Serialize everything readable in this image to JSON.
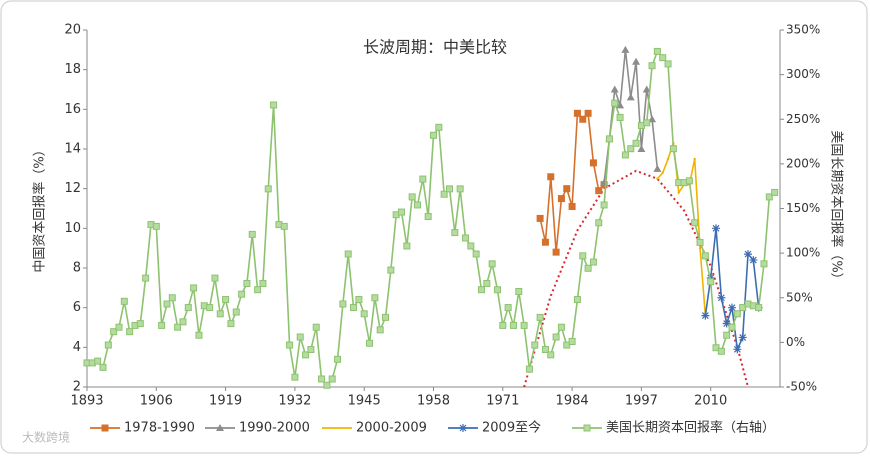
{
  "chart_data": {
    "type": "line",
    "title": "长波周期：中美比较",
    "ylabel": "中国资本回报率（%）",
    "y2label": "美国长期资本回报率（%）",
    "watermark": "大数跨境",
    "xlim": [
      1893,
      2023
    ],
    "xticks": [
      1893,
      1906,
      1919,
      1932,
      1945,
      1958,
      1971,
      1984,
      1997,
      2010
    ],
    "ylim": [
      2,
      20
    ],
    "yticks": [
      2,
      4,
      6,
      8,
      10,
      12,
      14,
      16,
      18,
      20
    ],
    "y2lim": [
      -50,
      350
    ],
    "y2ticks": [
      {
        "value": -50,
        "label": "-50%"
      },
      {
        "value": 0,
        "label": "0%"
      },
      {
        "value": 50,
        "label": "50%"
      },
      {
        "value": 100,
        "label": "100%"
      },
      {
        "value": 150,
        "label": "150%"
      },
      {
        "value": 200,
        "label": "200%"
      },
      {
        "value": 250,
        "label": "250%"
      },
      {
        "value": 300,
        "label": "300%"
      },
      {
        "value": 350,
        "label": "350%"
      }
    ],
    "series": [
      {
        "name": "1978-1990",
        "color": "#d4712b",
        "marker": "square",
        "x": [
          1978,
          1979,
          1980,
          1981,
          1982,
          1983,
          1984,
          1985,
          1986,
          1987,
          1988,
          1989,
          1990
        ],
        "values": [
          10.5,
          9.3,
          12.6,
          8.8,
          11.5,
          12.0,
          11.1,
          15.8,
          15.5,
          15.8,
          13.3,
          11.9,
          12.2
        ]
      },
      {
        "name": "1990-2000",
        "color": "#8c8c8c",
        "marker": "triangle",
        "x": [
          1990,
          1991,
          1992,
          1993,
          1994,
          1995,
          1996,
          1997,
          1998,
          1999,
          2000
        ],
        "values": [
          12.3,
          14.5,
          17.0,
          16.2,
          19.0,
          16.6,
          18.4,
          14.0,
          17.0,
          15.5,
          13.0
        ]
      },
      {
        "name": "2000-2009",
        "color": "#f0b400",
        "marker": "none",
        "x": [
          2000,
          2001,
          2002,
          2003,
          2004,
          2005,
          2006,
          2007,
          2008,
          2009
        ],
        "values": [
          12.5,
          12.8,
          13.5,
          14.3,
          11.8,
          12.2,
          12.2,
          13.5,
          9.0,
          5.6
        ]
      },
      {
        "name": "2009至今",
        "color": "#3d6cb3",
        "marker": "star",
        "x": [
          2009,
          2010,
          2011,
          2012,
          2013,
          2014,
          2015,
          2016,
          2017,
          2018,
          2019
        ],
        "values": [
          5.6,
          7.5,
          10.0,
          6.5,
          5.2,
          6.0,
          3.9,
          4.5,
          8.7,
          8.4,
          6.0
        ]
      },
      {
        "name": "美国长期资本回报率（右轴）",
        "color": "#8dc26f",
        "marker": "square",
        "axis": "y2",
        "x": [
          1893,
          1894,
          1895,
          1896,
          1897,
          1898,
          1899,
          1900,
          1901,
          1902,
          1903,
          1904,
          1905,
          1906,
          1907,
          1908,
          1909,
          1910,
          1911,
          1912,
          1913,
          1914,
          1915,
          1916,
          1917,
          1918,
          1919,
          1920,
          1921,
          1922,
          1923,
          1924,
          1925,
          1926,
          1927,
          1928,
          1929,
          1930,
          1931,
          1932,
          1933,
          1934,
          1935,
          1936,
          1937,
          1938,
          1939,
          1940,
          1941,
          1942,
          1943,
          1944,
          1945,
          1946,
          1947,
          1948,
          1949,
          1950,
          1951,
          1952,
          1953,
          1954,
          1955,
          1956,
          1957,
          1958,
          1959,
          1960,
          1961,
          1962,
          1963,
          1964,
          1965,
          1966,
          1967,
          1968,
          1969,
          1970,
          1971,
          1972,
          1973,
          1974,
          1975,
          1976,
          1977,
          1978,
          1979,
          1980,
          1981,
          1982,
          1983,
          1984,
          1985,
          1986,
          1987,
          1988,
          1989,
          1990,
          1991,
          1992,
          1993,
          1994,
          1995,
          1996,
          1997,
          1998,
          1999,
          2000,
          2001,
          2002,
          2003,
          2004,
          2005,
          2006,
          2007,
          2008,
          2009,
          2010,
          2011,
          2012,
          2013,
          2014,
          2015,
          2016,
          2017,
          2018,
          2019,
          2020,
          2021,
          2022
        ],
        "values": [
          -23,
          -23,
          -21,
          -28,
          -3,
          12,
          17,
          46,
          12,
          19,
          21,
          72,
          132,
          130,
          19,
          43,
          50,
          17,
          23,
          39,
          61,
          8,
          41,
          39,
          72,
          32,
          48,
          21,
          34,
          54,
          66,
          121,
          59,
          66,
          172,
          266,
          132,
          130,
          -3,
          -39,
          6,
          -14,
          -8,
          17,
          -41,
          -48,
          -41,
          -19,
          43,
          99,
          39,
          48,
          32,
          -1,
          50,
          14,
          28,
          81,
          143,
          146,
          108,
          163,
          154,
          183,
          141,
          232,
          241,
          166,
          172,
          123,
          172,
          117,
          108,
          99,
          59,
          66,
          88,
          59,
          19,
          39,
          19,
          57,
          19,
          -30,
          -3,
          28,
          -8,
          -14,
          6,
          17,
          -3,
          1,
          48,
          97,
          83,
          90,
          134,
          154,
          228,
          268,
          252,
          210,
          217,
          223,
          243,
          246,
          310,
          326,
          319,
          312,
          217,
          179,
          179,
          181,
          134,
          112,
          97,
          68,
          -6,
          -10,
          8,
          17,
          32,
          39,
          43,
          41,
          39,
          88,
          163,
          168
        ]
      }
    ],
    "trend": {
      "color": "#d9262b",
      "x": [
        1975,
        1980,
        1985,
        1990,
        1996,
        2000,
        2005,
        2010,
        2015,
        2017
      ],
      "values": [
        2,
        6.6,
        9.9,
        12.0,
        12.9,
        12.5,
        10.9,
        8.1,
        4.0,
        2
      ]
    }
  }
}
